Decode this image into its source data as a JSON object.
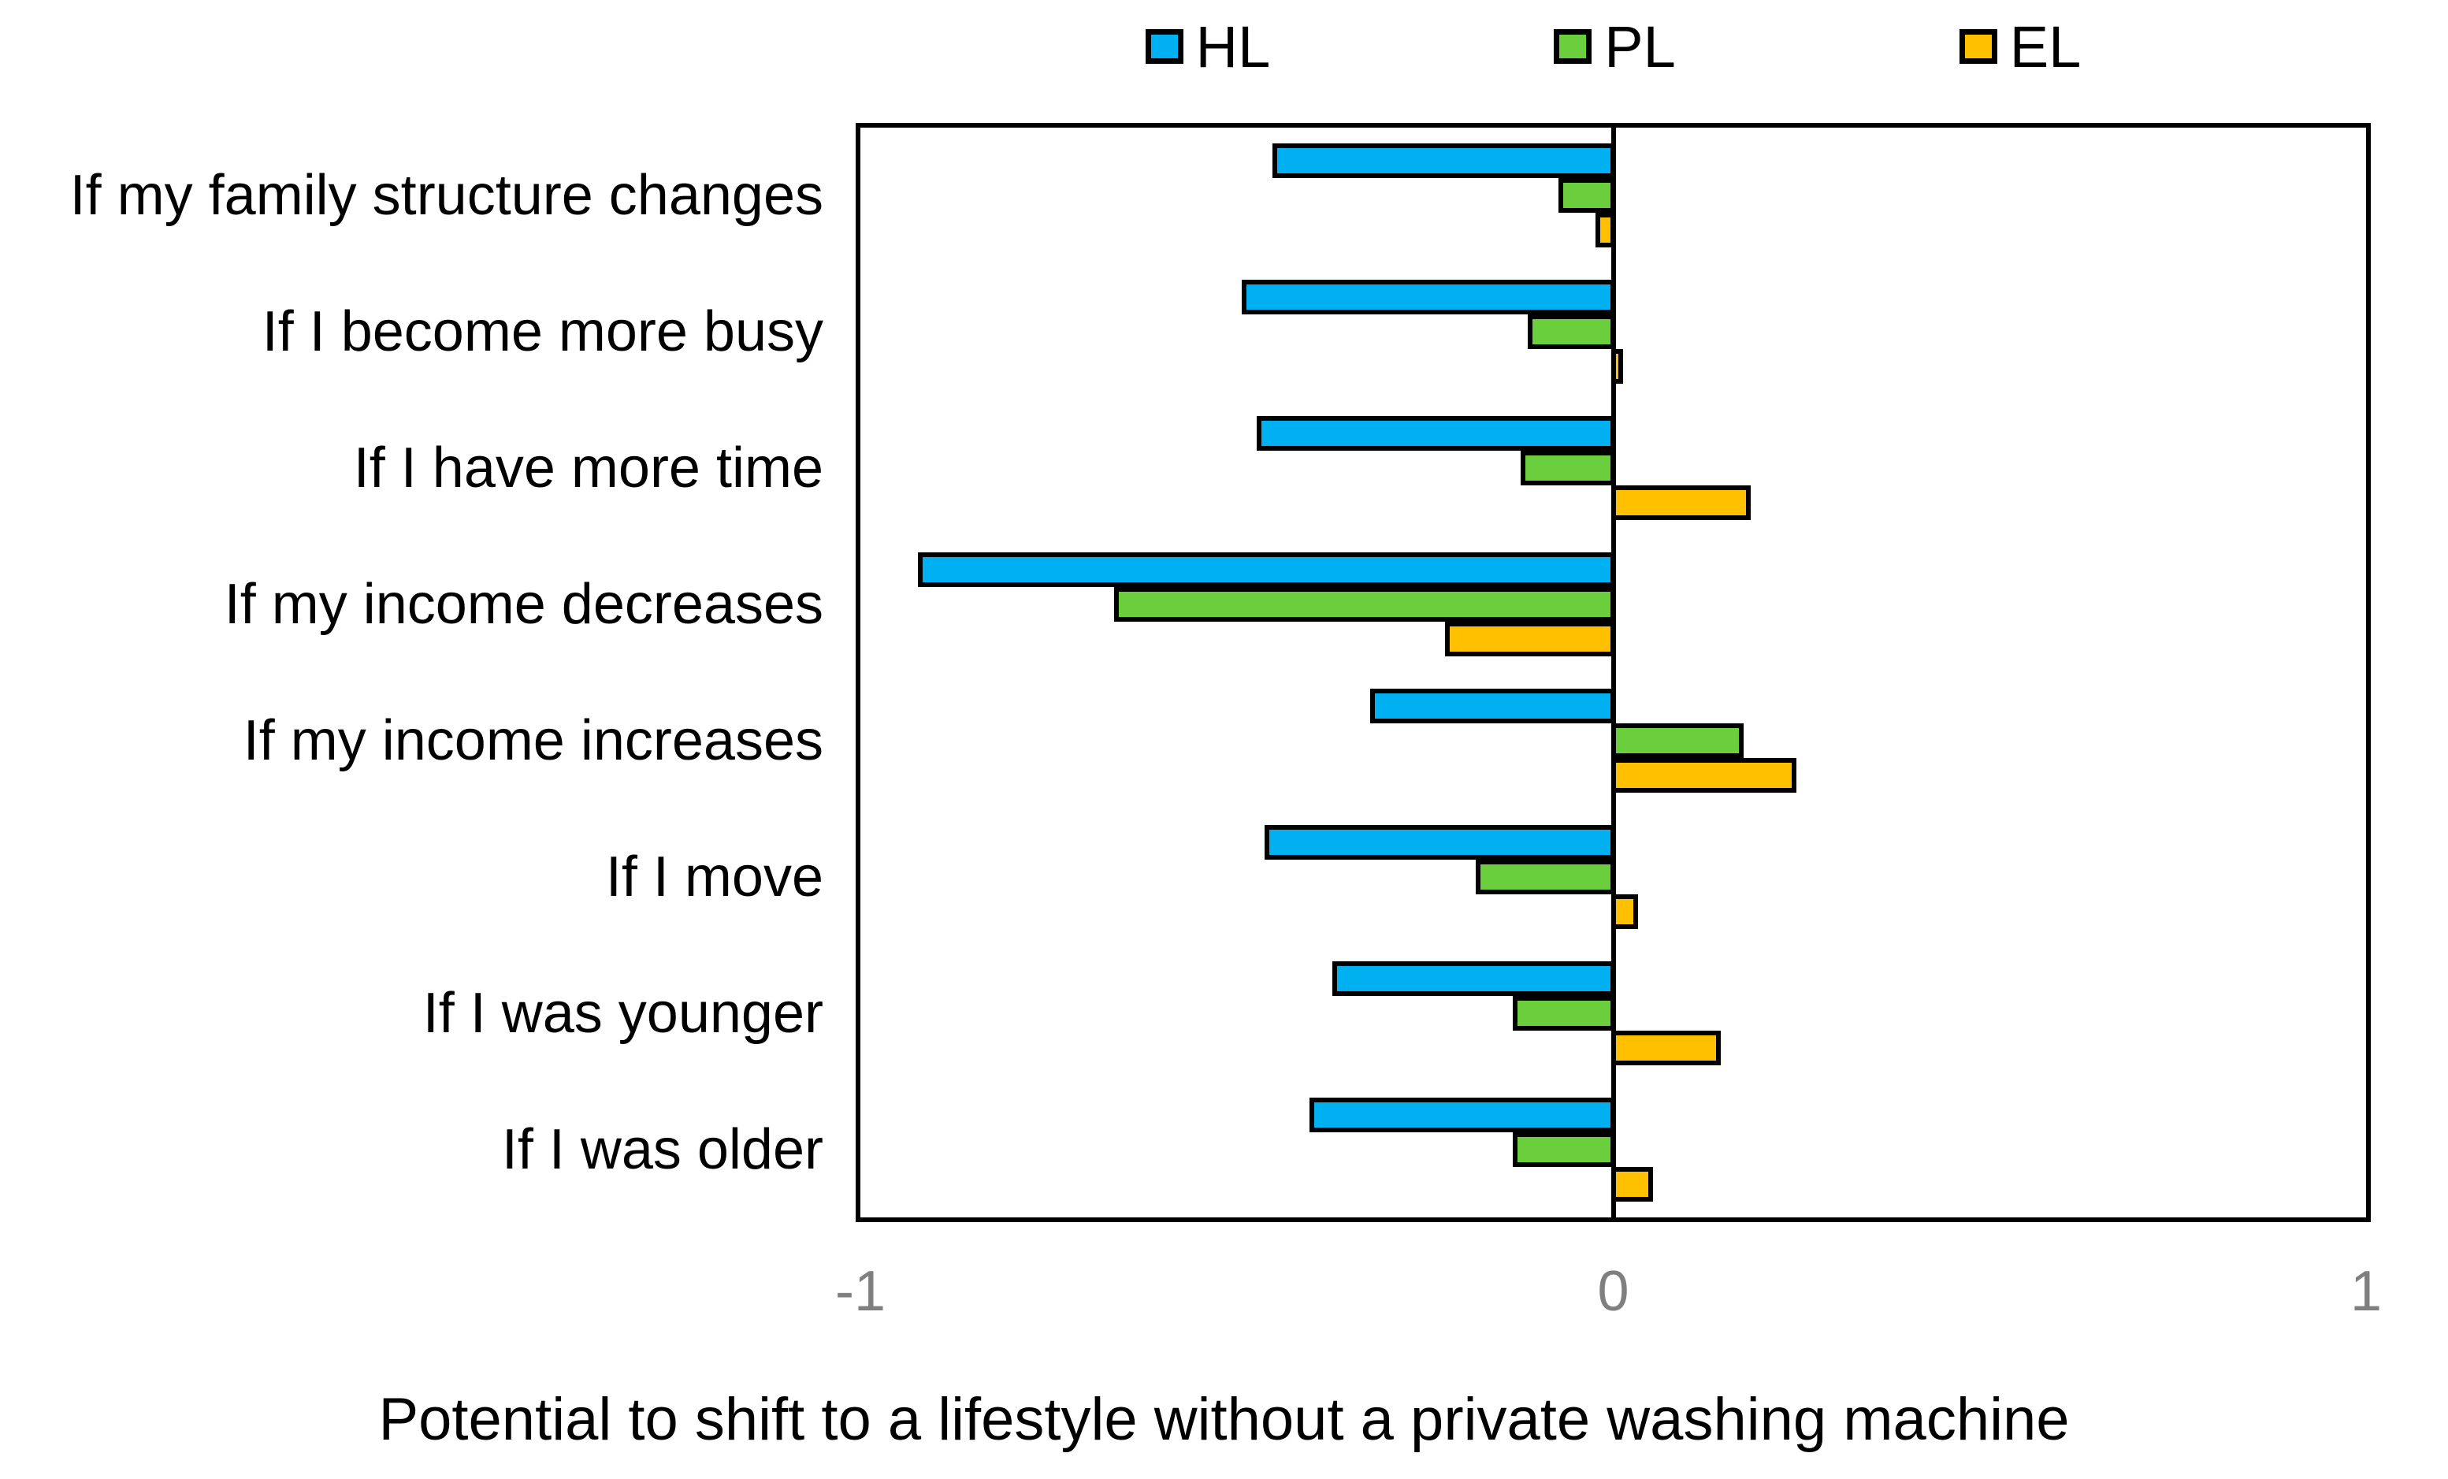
{
  "chart_data": {
    "type": "bar",
    "orientation": "horizontal",
    "xlabel": "Potential to shift to a lifestyle without a private washing machine",
    "xlim": [
      -1,
      1
    ],
    "xticks": [
      {
        "value": -1,
        "label": "-1"
      },
      {
        "value": 0,
        "label": "0"
      },
      {
        "value": 1,
        "label": "1"
      }
    ],
    "grid": false,
    "legend_position": "top",
    "categories": [
      "If my family structure changes",
      "If I become more busy",
      "If I have more time",
      "If my income decreases",
      "If my income increases",
      "If I move",
      "If I was younger",
      "If I was older"
    ],
    "series": [
      {
        "name": "HL",
        "color": "#00B0F0",
        "values": [
          -0.45,
          -0.49,
          -0.47,
          -0.92,
          -0.32,
          -0.46,
          -0.37,
          -0.4
        ]
      },
      {
        "name": "PL",
        "color": "#6BCE3C",
        "values": [
          -0.07,
          -0.11,
          -0.12,
          -0.66,
          0.17,
          -0.18,
          -0.13,
          -0.13
        ]
      },
      {
        "name": "EL",
        "color": "#FFC000",
        "values": [
          -0.02,
          0.01,
          0.18,
          -0.22,
          0.24,
          0.03,
          0.14,
          0.05
        ]
      }
    ],
    "bar_border_color": "#000000",
    "axis_line_color": "#000000",
    "tick_label_color": "#7F7F7F",
    "background": "#FFFFFF"
  }
}
